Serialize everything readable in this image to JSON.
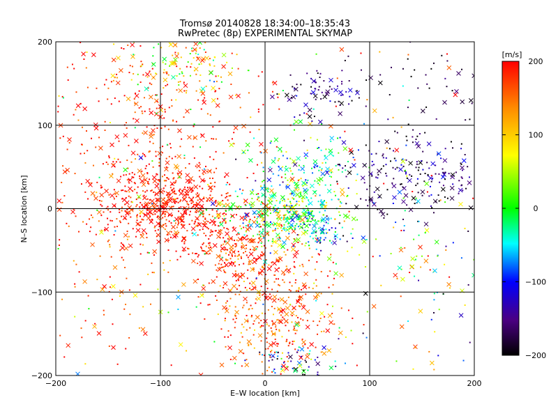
{
  "chart_data": {
    "type": "scatter",
    "title": "Tromsø 20140828 18:34:00–18:35:43",
    "subtitle": "RwPretec (8p) EXPERIMENTAL SKYMAP",
    "xlabel": "E–W location [km]",
    "ylabel": "N–S location [km]",
    "xlim": [
      -200,
      200
    ],
    "ylim": [
      -200,
      200
    ],
    "x_ticks": [
      -200,
      -100,
      0,
      100,
      200
    ],
    "y_ticks": [
      -200,
      -100,
      0,
      100,
      200
    ],
    "x_tick_labels": [
      "−200",
      "−100",
      "0",
      "100",
      "200"
    ],
    "y_tick_labels": [
      "−200",
      "−100",
      "0",
      "100",
      "200"
    ],
    "grid": true,
    "markers": [
      "dot",
      "cross"
    ],
    "colorbar": {
      "label": "[m/s]",
      "range": [
        -200,
        200
      ],
      "ticks": [
        -200,
        -100,
        0,
        100,
        200
      ],
      "tick_labels": [
        "−200",
        "−100",
        "0",
        "100",
        "200"
      ],
      "colors": [
        "#000000",
        "#4b0082",
        "#0000ff",
        "#00ffff",
        "#00ff00",
        "#ffff00",
        "#ff8c00",
        "#ff0000"
      ]
    },
    "clusters": [
      {
        "x": -90,
        "y": 0,
        "sx": 35,
        "sy": 25,
        "n": 500,
        "v": 190,
        "vs": 20
      },
      {
        "x": -30,
        "y": -50,
        "sx": 25,
        "sy": 20,
        "n": 200,
        "v": 180,
        "vs": 25
      },
      {
        "x": 10,
        "y": -120,
        "sx": 30,
        "sy": 45,
        "n": 400,
        "v": 170,
        "vs": 35
      },
      {
        "x": -120,
        "y": 80,
        "sx": 50,
        "sy": 60,
        "n": 350,
        "v": 185,
        "vs": 25
      },
      {
        "x": 15,
        "y": -5,
        "sx": 25,
        "sy": 20,
        "n": 350,
        "v": 40,
        "vs": 60
      },
      {
        "x": 40,
        "y": 40,
        "sx": 25,
        "sy": 25,
        "n": 150,
        "v": -10,
        "vs": 60
      },
      {
        "x": 50,
        "y": -25,
        "sx": 15,
        "sy": 12,
        "n": 80,
        "v": -50,
        "vs": 60
      },
      {
        "x": 140,
        "y": 40,
        "sx": 35,
        "sy": 25,
        "n": 220,
        "v": -160,
        "vs": 40
      },
      {
        "x": 60,
        "y": 140,
        "sx": 20,
        "sy": 15,
        "n": 80,
        "v": -150,
        "vs": 40
      },
      {
        "x": -80,
        "y": 170,
        "sx": 30,
        "sy": 20,
        "n": 150,
        "v": 110,
        "vs": 70
      },
      {
        "x": 30,
        "y": -185,
        "sx": 20,
        "sy": 10,
        "n": 60,
        "v": -120,
        "vs": 80
      },
      {
        "x": 0,
        "y": 0,
        "sx": 120,
        "sy": 110,
        "n": 300,
        "v": 120,
        "vs": 100
      },
      {
        "x": -150,
        "y": -80,
        "sx": 30,
        "sy": 60,
        "n": 80,
        "v": 170,
        "vs": 40
      },
      {
        "x": 150,
        "y": -80,
        "sx": 35,
        "sy": 80,
        "n": 80,
        "v": 20,
        "vs": 120
      },
      {
        "x": 160,
        "y": 150,
        "sx": 30,
        "sy": 30,
        "n": 40,
        "v": -180,
        "vs": 20
      }
    ]
  }
}
